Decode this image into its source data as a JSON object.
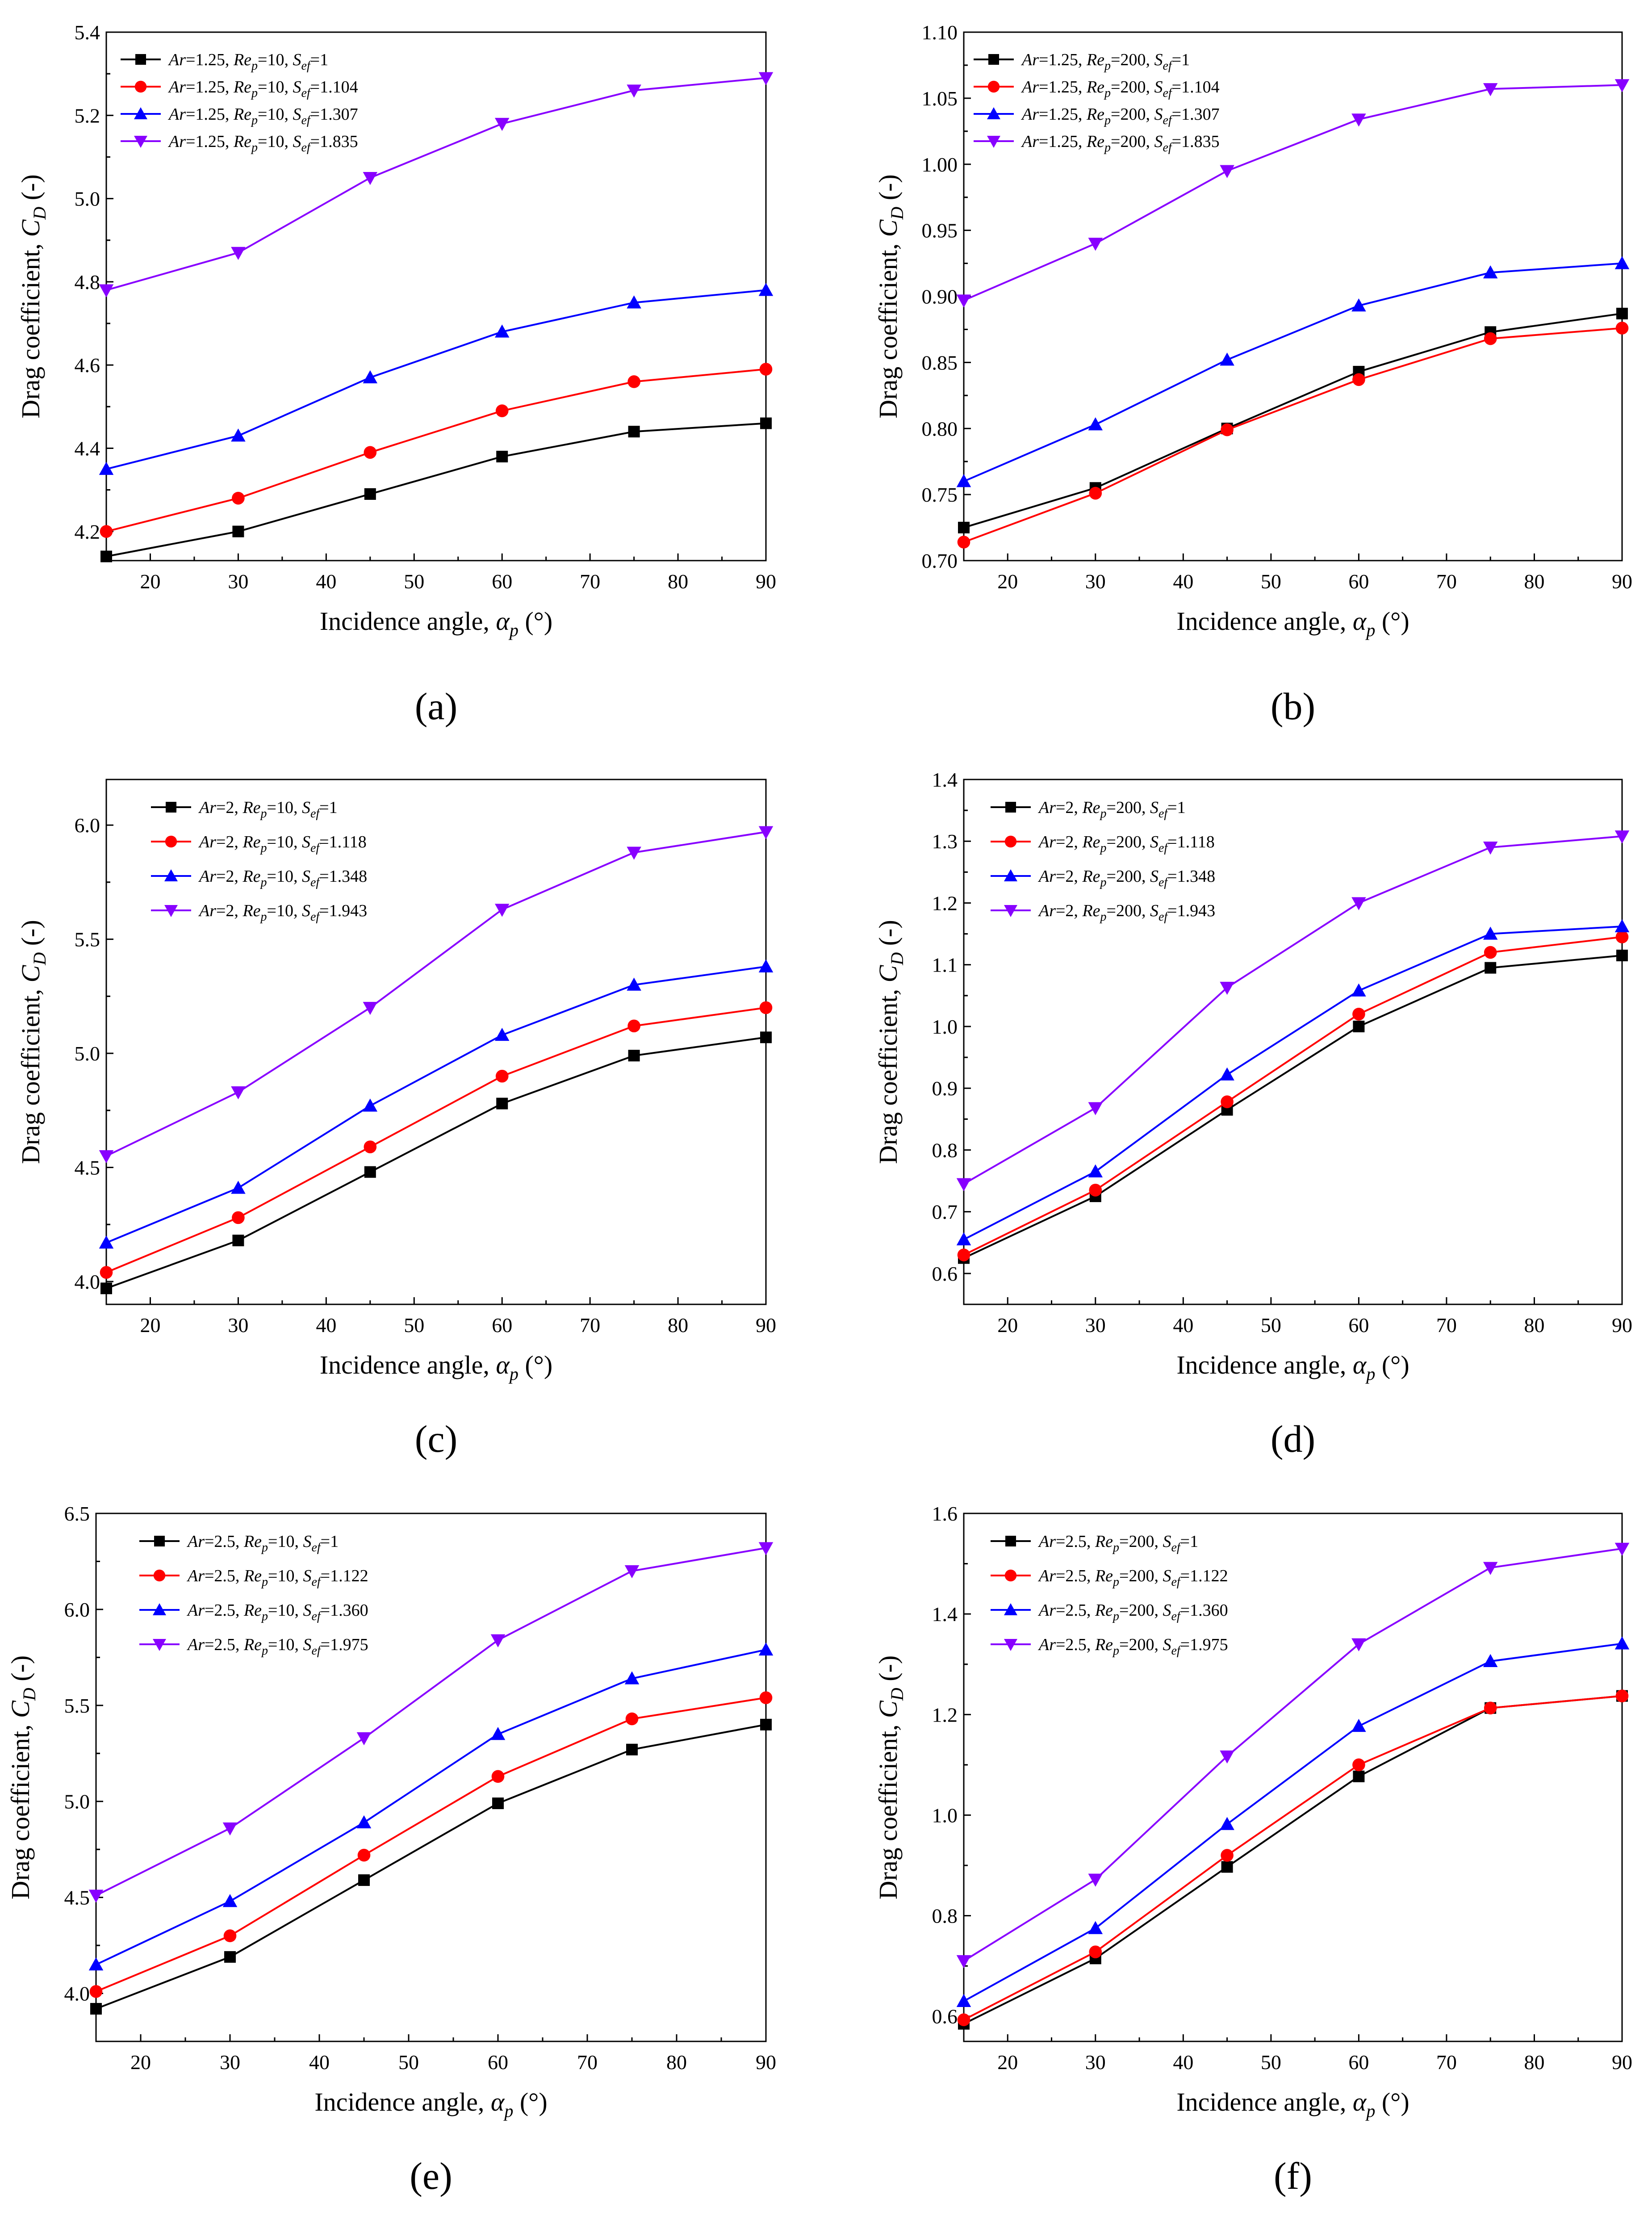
{
  "colors": {
    "black": "#000000",
    "red": "#ff0000",
    "blue": "#0000ff",
    "purple": "#8800ff"
  },
  "chart_data": [
    {
      "type": "line",
      "caption": "(a)",
      "xlabel": "Incidence angle, α",
      "xlabel_sub": "p",
      "xlabel_unit": "(°)",
      "ylabel": "Drag coefficient, C",
      "ylabel_sub": "D",
      "ylabel_unit": "(-)",
      "x": [
        15,
        30,
        45,
        60,
        75,
        90
      ],
      "xlim": [
        15,
        90
      ],
      "ylim": [
        4.13,
        5.4
      ],
      "xticks": [
        20,
        30,
        40,
        50,
        60,
        70,
        80,
        90
      ],
      "yticks": [
        4.2,
        4.4,
        4.6,
        4.8,
        5.0,
        5.2,
        5.4
      ],
      "ytick_labels": [
        "4.2",
        "4.4",
        "4.6",
        "4.8",
        "5.0",
        "5.2",
        "5.4"
      ],
      "series": [
        {
          "ar": "Ar",
          "ar_val": "=1.25,",
          "re": "Re",
          "re_sub": "p",
          "re_val": "=10,",
          "s": "S",
          "s_sub": "ef",
          "s_val": "=1",
          "color": "#000000",
          "marker": "square",
          "values": [
            4.14,
            4.2,
            4.29,
            4.38,
            4.44,
            4.46
          ]
        },
        {
          "ar": "Ar",
          "ar_val": "=1.25,",
          "re": "Re",
          "re_sub": "p",
          "re_val": "=10,",
          "s": "S",
          "s_sub": "ef",
          "s_val": "=1.104",
          "color": "#ff0000",
          "marker": "circle",
          "values": [
            4.2,
            4.28,
            4.39,
            4.49,
            4.56,
            4.59
          ]
        },
        {
          "ar": "Ar",
          "ar_val": "=1.25,",
          "re": "Re",
          "re_sub": "p",
          "re_val": "=10,",
          "s": "S",
          "s_sub": "ef",
          "s_val": "=1.307",
          "color": "#0000ff",
          "marker": "triangle-up",
          "values": [
            4.35,
            4.43,
            4.57,
            4.68,
            4.75,
            4.78
          ]
        },
        {
          "ar": "Ar",
          "ar_val": "=1.25,",
          "re": "Re",
          "re_sub": "p",
          "re_val": "=10,",
          "s": "S",
          "s_sub": "ef",
          "s_val": "=1.835",
          "color": "#8800ff",
          "marker": "triangle-down",
          "values": [
            4.78,
            4.87,
            5.05,
            5.18,
            5.26,
            5.29
          ]
        }
      ]
    },
    {
      "type": "line",
      "caption": "(b)",
      "xlabel": "Incidence angle, α",
      "xlabel_sub": "p",
      "xlabel_unit": "(°)",
      "ylabel": "Drag coefficient, C",
      "ylabel_sub": "D",
      "ylabel_unit": "(-)",
      "x": [
        15,
        30,
        45,
        60,
        75,
        90
      ],
      "xlim": [
        15,
        90
      ],
      "ylim": [
        0.7,
        1.1
      ],
      "xticks": [
        20,
        30,
        40,
        50,
        60,
        70,
        80,
        90
      ],
      "yticks": [
        0.7,
        0.75,
        0.8,
        0.85,
        0.9,
        0.95,
        1.0,
        1.05,
        1.1
      ],
      "ytick_labels": [
        "0.70",
        "0.75",
        "0.80",
        "0.85",
        "0.90",
        "0.95",
        "1.00",
        "1.05",
        "1.10"
      ],
      "series": [
        {
          "ar": "Ar",
          "ar_val": "=1.25,",
          "re": "Re",
          "re_sub": "p",
          "re_val": "=200,",
          "s": "S",
          "s_sub": "ef",
          "s_val": "=1",
          "color": "#000000",
          "marker": "square",
          "values": [
            0.725,
            0.755,
            0.8,
            0.843,
            0.873,
            0.887
          ]
        },
        {
          "ar": "Ar",
          "ar_val": "=1.25,",
          "re": "Re",
          "re_sub": "p",
          "re_val": "=200,",
          "s": "S",
          "s_sub": "ef",
          "s_val": "=1.104",
          "color": "#ff0000",
          "marker": "circle",
          "values": [
            0.714,
            0.751,
            0.799,
            0.837,
            0.868,
            0.876
          ]
        },
        {
          "ar": "Ar",
          "ar_val": "=1.25,",
          "re": "Re",
          "re_sub": "p",
          "re_val": "=200,",
          "s": "S",
          "s_sub": "ef",
          "s_val": "=1.307",
          "color": "#0000ff",
          "marker": "triangle-up",
          "values": [
            0.76,
            0.803,
            0.852,
            0.893,
            0.918,
            0.925
          ]
        },
        {
          "ar": "Ar",
          "ar_val": "=1.25,",
          "re": "Re",
          "re_sub": "p",
          "re_val": "=200,",
          "s": "S",
          "s_sub": "ef",
          "s_val": "=1.835",
          "color": "#8800ff",
          "marker": "triangle-down",
          "values": [
            0.897,
            0.94,
            0.995,
            1.034,
            1.057,
            1.06
          ]
        }
      ]
    },
    {
      "type": "line",
      "caption": "(c)",
      "xlabel": "Incidence angle, α",
      "xlabel_sub": "p",
      "xlabel_unit": "(°)",
      "ylabel": "Drag coefficient, C",
      "ylabel_sub": "D",
      "ylabel_unit": "(-)",
      "x": [
        15,
        30,
        45,
        60,
        75,
        90
      ],
      "xlim": [
        15,
        90
      ],
      "ylim": [
        3.9,
        6.2
      ],
      "xticks": [
        20,
        30,
        40,
        50,
        60,
        70,
        80,
        90
      ],
      "yticks": [
        4.0,
        4.5,
        5.0,
        5.5,
        6.0
      ],
      "ytick_labels": [
        "4.0",
        "4.5",
        "5.0",
        "5.5",
        "6.0"
      ],
      "series": [
        {
          "ar": "Ar",
          "ar_val": "=2,",
          "re": "Re",
          "re_sub": "p",
          "re_val": "=10,",
          "s": "S",
          "s_sub": "ef",
          "s_val": "=1",
          "color": "#000000",
          "marker": "square",
          "values": [
            3.97,
            4.18,
            4.48,
            4.78,
            4.99,
            5.07
          ]
        },
        {
          "ar": "Ar",
          "ar_val": "=2,",
          "re": "Re",
          "re_sub": "p",
          "re_val": "=10,",
          "s": "S",
          "s_sub": "ef",
          "s_val": "=1.118",
          "color": "#ff0000",
          "marker": "circle",
          "values": [
            4.04,
            4.28,
            4.59,
            4.9,
            5.12,
            5.2
          ]
        },
        {
          "ar": "Ar",
          "ar_val": "=2,",
          "re": "Re",
          "re_sub": "p",
          "re_val": "=10,",
          "s": "S",
          "s_sub": "ef",
          "s_val": "=1.348",
          "color": "#0000ff",
          "marker": "triangle-up",
          "values": [
            4.17,
            4.41,
            4.77,
            5.08,
            5.3,
            5.38
          ]
        },
        {
          "ar": "Ar",
          "ar_val": "=2,",
          "re": "Re",
          "re_sub": "p",
          "re_val": "=10,",
          "s": "S",
          "s_sub": "ef",
          "s_val": "=1.943",
          "color": "#8800ff",
          "marker": "triangle-down",
          "values": [
            4.55,
            4.83,
            5.2,
            5.63,
            5.88,
            5.97
          ]
        }
      ]
    },
    {
      "type": "line",
      "caption": "(d)",
      "xlabel": "Incidence angle, α",
      "xlabel_sub": "p",
      "xlabel_unit": "(°)",
      "ylabel": "Drag coefficient, C",
      "ylabel_sub": "D",
      "ylabel_unit": "(-)",
      "x": [
        15,
        30,
        45,
        60,
        75,
        90
      ],
      "xlim": [
        15,
        90
      ],
      "ylim": [
        0.55,
        1.4
      ],
      "xticks": [
        20,
        30,
        40,
        50,
        60,
        70,
        80,
        90
      ],
      "yticks": [
        0.6,
        0.7,
        0.8,
        0.9,
        1.0,
        1.1,
        1.2,
        1.3,
        1.4
      ],
      "ytick_labels": [
        "0.6",
        "0.7",
        "0.8",
        "0.9",
        "1.0",
        "1.1",
        "1.2",
        "1.3",
        "1.4"
      ],
      "series": [
        {
          "ar": "Ar",
          "ar_val": "=2,",
          "re": "Re",
          "re_sub": "p",
          "re_val": "=200,",
          "s": "S",
          "s_sub": "ef",
          "s_val": "=1",
          "color": "#000000",
          "marker": "square",
          "values": [
            0.625,
            0.725,
            0.865,
            1.0,
            1.095,
            1.115
          ]
        },
        {
          "ar": "Ar",
          "ar_val": "=2,",
          "re": "Re",
          "re_sub": "p",
          "re_val": "=200,",
          "s": "S",
          "s_sub": "ef",
          "s_val": "=1.118",
          "color": "#ff0000",
          "marker": "circle",
          "values": [
            0.63,
            0.735,
            0.878,
            1.02,
            1.12,
            1.145
          ]
        },
        {
          "ar": "Ar",
          "ar_val": "=2,",
          "re": "Re",
          "re_sub": "p",
          "re_val": "=200,",
          "s": "S",
          "s_sub": "ef",
          "s_val": "=1.348",
          "color": "#0000ff",
          "marker": "triangle-up",
          "values": [
            0.655,
            0.765,
            0.922,
            1.058,
            1.15,
            1.162
          ]
        },
        {
          "ar": "Ar",
          "ar_val": "=2,",
          "re": "Re",
          "re_sub": "p",
          "re_val": "=200,",
          "s": "S",
          "s_sub": "ef",
          "s_val": "=1.943",
          "color": "#8800ff",
          "marker": "triangle-down",
          "values": [
            0.745,
            0.868,
            1.063,
            1.2,
            1.29,
            1.308
          ]
        }
      ]
    },
    {
      "type": "line",
      "caption": "(e)",
      "xlabel": "Incidence angle, α",
      "xlabel_sub": "p",
      "xlabel_unit": "(°)",
      "ylabel": "Drag coefficient, C",
      "ylabel_sub": "D",
      "ylabel_unit": "(-)",
      "x": [
        15,
        30,
        45,
        60,
        75,
        90
      ],
      "xlim": [
        15,
        90
      ],
      "ylim": [
        3.75,
        6.5
      ],
      "xticks": [
        20,
        30,
        40,
        50,
        60,
        70,
        80,
        90
      ],
      "yticks": [
        4.0,
        4.5,
        5.0,
        5.5,
        6.0,
        6.5
      ],
      "ytick_labels": [
        "4.0",
        "4.5",
        "5.0",
        "5.5",
        "6.0",
        "6.5"
      ],
      "series": [
        {
          "ar": "Ar",
          "ar_val": "=2.5,",
          "re": "Re",
          "re_sub": "p",
          "re_val": "=10,",
          "s": "S",
          "s_sub": "ef",
          "s_val": "=1",
          "color": "#000000",
          "marker": "square",
          "values": [
            3.92,
            4.19,
            4.59,
            4.99,
            5.27,
            5.4
          ]
        },
        {
          "ar": "Ar",
          "ar_val": "=2.5,",
          "re": "Re",
          "re_sub": "p",
          "re_val": "=10,",
          "s": "S",
          "s_sub": "ef",
          "s_val": "=1.122",
          "color": "#ff0000",
          "marker": "circle",
          "values": [
            4.01,
            4.3,
            4.72,
            5.13,
            5.43,
            5.54
          ]
        },
        {
          "ar": "Ar",
          "ar_val": "=2.5,",
          "re": "Re",
          "re_sub": "p",
          "re_val": "=10,",
          "s": "S",
          "s_sub": "ef",
          "s_val": "=1.360",
          "color": "#0000ff",
          "marker": "triangle-up",
          "values": [
            4.15,
            4.48,
            4.89,
            5.35,
            5.64,
            5.79
          ]
        },
        {
          "ar": "Ar",
          "ar_val": "=2.5,",
          "re": "Re",
          "re_sub": "p",
          "re_val": "=10,",
          "s": "S",
          "s_sub": "ef",
          "s_val": "=1.975",
          "color": "#8800ff",
          "marker": "triangle-down",
          "values": [
            4.51,
            4.86,
            5.33,
            5.84,
            6.2,
            6.32
          ]
        }
      ]
    },
    {
      "type": "line",
      "caption": "(f)",
      "xlabel": "Incidence angle, α",
      "xlabel_sub": "p",
      "xlabel_unit": "(°)",
      "ylabel": "Drag coefficient, C",
      "ylabel_sub": "D",
      "ylabel_unit": "(-)",
      "x": [
        15,
        30,
        45,
        60,
        75,
        90
      ],
      "xlim": [
        15,
        90
      ],
      "ylim": [
        0.55,
        1.6
      ],
      "xticks": [
        20,
        30,
        40,
        50,
        60,
        70,
        80,
        90
      ],
      "yticks": [
        0.6,
        0.8,
        1.0,
        1.2,
        1.4,
        1.6
      ],
      "ytick_labels": [
        "0.6",
        "0.8",
        "1.0",
        "1.2",
        "1.4",
        "1.6"
      ],
      "series": [
        {
          "ar": "Ar",
          "ar_val": "=2.5,",
          "re": "Re",
          "re_sub": "p",
          "re_val": "=200,",
          "s": "S",
          "s_sub": "ef",
          "s_val": "=1",
          "color": "#000000",
          "marker": "square",
          "values": [
            0.585,
            0.715,
            0.897,
            1.077,
            1.213,
            1.237
          ]
        },
        {
          "ar": "Ar",
          "ar_val": "=2.5,",
          "re": "Re",
          "re_sub": "p",
          "re_val": "=200,",
          "s": "S",
          "s_sub": "ef",
          "s_val": "=1.122",
          "color": "#ff0000",
          "marker": "circle",
          "values": [
            0.593,
            0.728,
            0.92,
            1.1,
            1.213,
            1.237
          ]
        },
        {
          "ar": "Ar",
          "ar_val": "=2.5,",
          "re": "Re",
          "re_sub": "p",
          "re_val": "=200,",
          "s": "S",
          "s_sub": "ef",
          "s_val": "=1.360",
          "color": "#0000ff",
          "marker": "triangle-up",
          "values": [
            0.63,
            0.775,
            0.982,
            1.177,
            1.306,
            1.341
          ]
        },
        {
          "ar": "Ar",
          "ar_val": "=2.5,",
          "re": "Re",
          "re_sub": "p",
          "re_val": "=200,",
          "s": "S",
          "s_sub": "ef",
          "s_val": "=1.975",
          "color": "#8800ff",
          "marker": "triangle-down",
          "values": [
            0.71,
            0.872,
            1.117,
            1.34,
            1.492,
            1.53
          ]
        }
      ]
    }
  ]
}
